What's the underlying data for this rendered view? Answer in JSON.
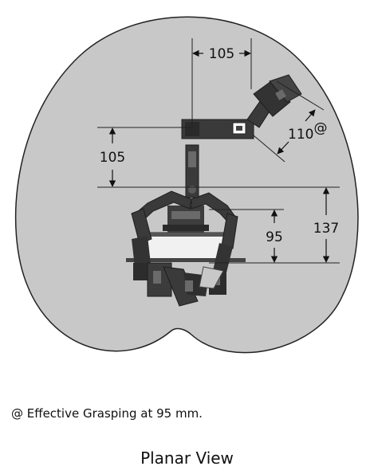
{
  "diagram": {
    "dimensions": {
      "link_horizontal": "105",
      "link_vertical": "105",
      "effective_link": "110",
      "effective_mark": "@",
      "finger_base": "95",
      "total_height": "137"
    },
    "colors": {
      "workspace": "#c8c8c8",
      "workspace_outline": "#222222",
      "robot": "#3a3a3a",
      "robot_dark": "#1e1e1e",
      "robot_light": "#6a6a6a"
    }
  },
  "footnote": "@ Effective Grasping at 95 mm.",
  "caption": "Planar View"
}
